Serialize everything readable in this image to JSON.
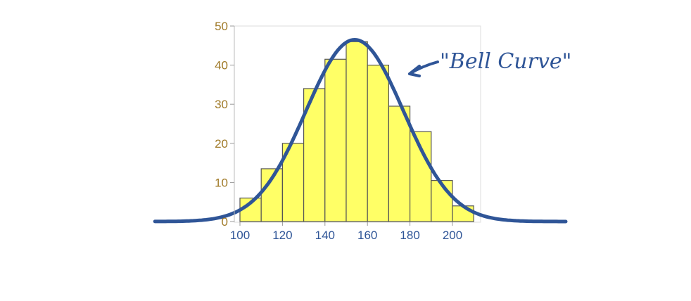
{
  "chart_data": {
    "type": "bar",
    "x_bin_edges": [
      100,
      110,
      120,
      130,
      140,
      150,
      160,
      170,
      180,
      190,
      200,
      210
    ],
    "values": [
      6,
      13.5,
      20,
      34,
      41.5,
      46,
      40,
      29.5,
      23,
      10.5,
      4
    ],
    "xticks": [
      "100",
      "120",
      "140",
      "160",
      "180",
      "200"
    ],
    "yticks": [
      "0",
      "10",
      "20",
      "30",
      "40",
      "50"
    ],
    "xlim": [
      100,
      210
    ],
    "ylim": [
      0,
      50
    ],
    "grid": false,
    "overlay_curve": {
      "type": "normal",
      "mean": 154,
      "sd": 23,
      "peak": 46.5
    },
    "annotation": "\"Bell Curve\"",
    "colors": {
      "bar_fill": "#ffff66",
      "bar_stroke": "#555555",
      "curve": "#2f5597",
      "ytick": "#a07a28",
      "xtick": "#2f5597"
    }
  }
}
